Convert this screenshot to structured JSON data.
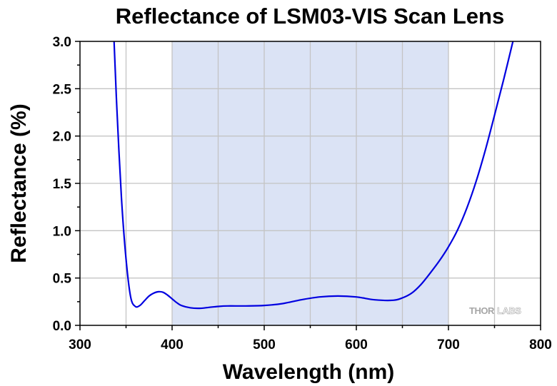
{
  "chart_data": {
    "type": "line",
    "title": "Reflectance of LSM03-VIS Scan Lens",
    "xlabel": "Wavelength (nm)",
    "ylabel": "Reflectance (%)",
    "xlim": [
      300,
      800
    ],
    "ylim": [
      0,
      3.0
    ],
    "x_ticks": [
      "300",
      "400",
      "500",
      "600",
      "700",
      "800"
    ],
    "y_ticks": [
      "0.0",
      "0.5",
      "1.0",
      "1.5",
      "2.0",
      "2.5",
      "3.0"
    ],
    "grid": true,
    "shaded_band": {
      "x_start": 400,
      "x_end": 700,
      "color": "#dbe3f5"
    },
    "series": [
      {
        "color": "#0000e0",
        "x": [
          337,
          340,
          345,
          350,
          355,
          360,
          365,
          370,
          375,
          380,
          385,
          390,
          395,
          400,
          405,
          410,
          420,
          430,
          440,
          450,
          460,
          480,
          500,
          520,
          540,
          560,
          580,
          600,
          620,
          640,
          650,
          660,
          670,
          680,
          690,
          700,
          710,
          720,
          730,
          740,
          750,
          760,
          770
        ],
        "y": [
          3.0,
          2.3,
          1.35,
          0.7,
          0.3,
          0.2,
          0.21,
          0.26,
          0.31,
          0.34,
          0.355,
          0.35,
          0.32,
          0.28,
          0.24,
          0.21,
          0.185,
          0.18,
          0.19,
          0.2,
          0.205,
          0.205,
          0.21,
          0.23,
          0.27,
          0.3,
          0.31,
          0.3,
          0.27,
          0.265,
          0.29,
          0.34,
          0.43,
          0.55,
          0.68,
          0.83,
          1.01,
          1.24,
          1.52,
          1.85,
          2.22,
          2.6,
          3.0
        ]
      }
    ]
  },
  "logo": {
    "part1": "THOR",
    "part2": "LABS"
  }
}
